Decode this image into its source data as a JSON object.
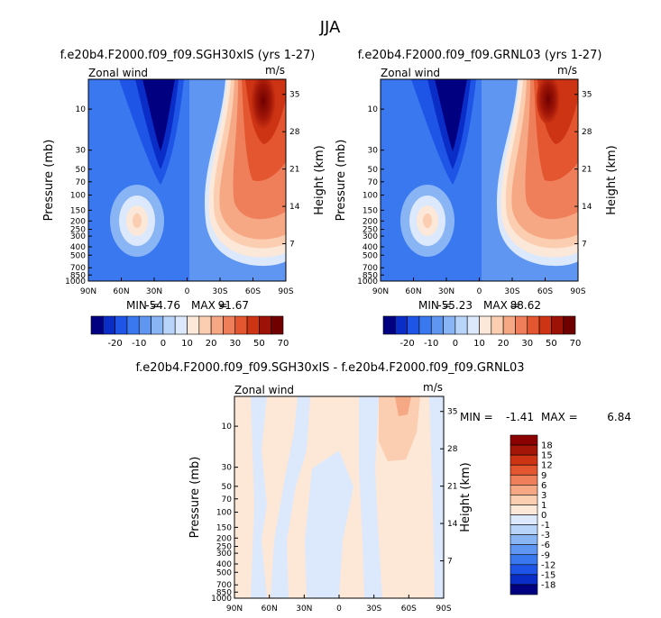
{
  "figure_title": "JJA",
  "panel_labels": {
    "field": "Zonal wind",
    "units": "m/s",
    "min_label": "MIN =",
    "max_label": "MAX ="
  },
  "colors": {
    "diverging_scale": [
      "#000080",
      "#0a2dc8",
      "#1e55e6",
      "#3a78f0",
      "#5f96f2",
      "#8ab5f5",
      "#b9d4f9",
      "#dce9fc",
      "#fce8d8",
      "#fbcdb1",
      "#f6a884",
      "#ee7f5a",
      "#e3562f",
      "#cd3414",
      "#9d1206",
      "#700000"
    ],
    "diff_scale": [
      "#000080",
      "#0a2dc8",
      "#1e55e6",
      "#3a78f0",
      "#5f96f2",
      "#8ab5f5",
      "#b9d4f9",
      "#dce9fc",
      "#fde7d6",
      "#fbcdb1",
      "#f6a884",
      "#ee7f5a",
      "#e3562f",
      "#cd3414",
      "#a41607",
      "#8b0000"
    ]
  },
  "chart_data": [
    {
      "type": "contour",
      "title": "f.e20b4.F2000.f09_f09.SGH30xIS (yrs 1-27)",
      "field": "Zonal wind",
      "units": "m/s",
      "xlabel": "",
      "ylabel": "Pressure (mb)",
      "ylabel_right": "Height (km)",
      "xticks": [
        "90N",
        "60N",
        "30N",
        "0",
        "30S",
        "60S",
        "90S"
      ],
      "yticks": [
        "10",
        "30",
        "50",
        "70",
        "100",
        "150",
        "200",
        "250",
        "300",
        "400",
        "500",
        "700",
        "850",
        "1000"
      ],
      "yticks_right": [
        "35",
        "28",
        "21",
        "14",
        "7"
      ],
      "min": "-54.76",
      "max": "91.67",
      "colorbar_labels": [
        "-20",
        "-10",
        "0",
        "10",
        "20",
        "30",
        "50",
        "70"
      ]
    },
    {
      "type": "contour",
      "title": "f.e20b4.F2000.f09_f09.GRNL03 (yrs 1-27)",
      "field": "Zonal wind",
      "units": "m/s",
      "xlabel": "",
      "ylabel": "Pressure (mb)",
      "ylabel_right": "Height (km)",
      "xticks": [
        "90N",
        "60N",
        "30N",
        "0",
        "30S",
        "60S",
        "90S"
      ],
      "yticks": [
        "10",
        "30",
        "50",
        "70",
        "100",
        "150",
        "200",
        "250",
        "300",
        "400",
        "500",
        "700",
        "850",
        "1000"
      ],
      "yticks_right": [
        "35",
        "28",
        "21",
        "14",
        "7"
      ],
      "min": "-55.23",
      "max": "88.62",
      "colorbar_labels": [
        "-20",
        "-10",
        "0",
        "10",
        "20",
        "30",
        "50",
        "70"
      ]
    },
    {
      "type": "contour",
      "title": "f.e20b4.F2000.f09_f09.SGH30xIS - f.e20b4.F2000.f09_f09.GRNL03",
      "field": "Zonal wind",
      "units": "m/s",
      "xlabel": "",
      "ylabel": "Pressure (mb)",
      "ylabel_right": "Height (km)",
      "xticks": [
        "90N",
        "60N",
        "30N",
        "0",
        "30S",
        "60S",
        "90S"
      ],
      "yticks": [
        "10",
        "30",
        "50",
        "70",
        "100",
        "150",
        "200",
        "250",
        "300",
        "400",
        "500",
        "700",
        "850",
        "1000"
      ],
      "yticks_right": [
        "35",
        "28",
        "21",
        "14",
        "7"
      ],
      "min": "-1.41",
      "max": "6.84",
      "colorbar_labels": [
        "18",
        "15",
        "12",
        "9",
        "6",
        "3",
        "1",
        "0",
        "-1",
        "-3",
        "-6",
        "-9",
        "-12",
        "-15",
        "-18"
      ]
    }
  ]
}
